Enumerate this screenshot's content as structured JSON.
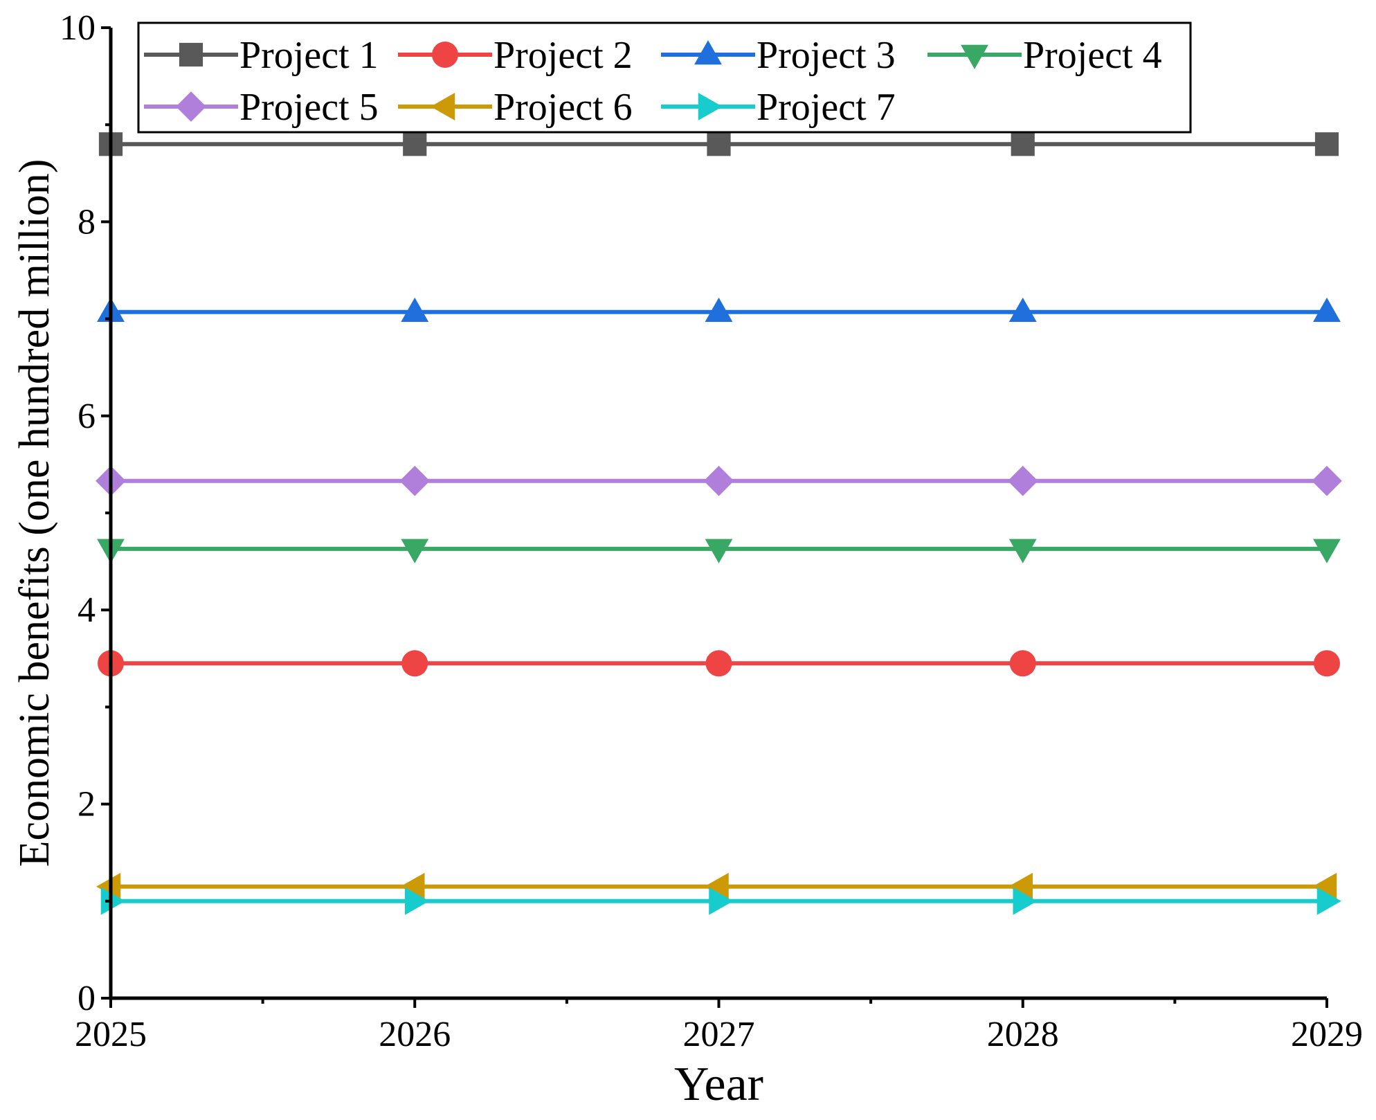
{
  "chart_data": {
    "type": "line",
    "xlabel": "Year",
    "ylabel": "Economic benefits (one hundred million)",
    "categories": [
      "2025",
      "2026",
      "2027",
      "2028",
      "2029"
    ],
    "x": [
      2025,
      2026,
      2027,
      2028,
      2029
    ],
    "xlim": [
      2025,
      2029
    ],
    "ylim": [
      0,
      10
    ],
    "yticks": [
      0,
      2,
      4,
      6,
      8,
      10
    ],
    "y_tick_labels": [
      "0",
      "2",
      "4",
      "6",
      "8",
      "10"
    ],
    "grid": false,
    "legend": "top-left, inside plot area, two rows",
    "series": [
      {
        "name": "Project 1",
        "values": [
          8.8,
          8.8,
          8.8,
          8.8,
          8.8
        ],
        "color": "#595959",
        "marker": "square"
      },
      {
        "name": "Project 2",
        "values": [
          3.45,
          3.45,
          3.45,
          3.45,
          3.45
        ],
        "color": "#ee4444",
        "marker": "circle"
      },
      {
        "name": "Project 3",
        "values": [
          7.07,
          7.07,
          7.07,
          7.07,
          7.07
        ],
        "color": "#1f6fdc",
        "marker": "triangle-up"
      },
      {
        "name": "Project 4",
        "values": [
          4.63,
          4.63,
          4.63,
          4.63,
          4.63
        ],
        "color": "#3aa865",
        "marker": "triangle-down"
      },
      {
        "name": "Project 5",
        "values": [
          5.33,
          5.33,
          5.33,
          5.33,
          5.33
        ],
        "color": "#b07fdc",
        "marker": "diamond"
      },
      {
        "name": "Project 6",
        "values": [
          1.15,
          1.15,
          1.15,
          1.15,
          1.15
        ],
        "color": "#cc9a06",
        "marker": "triangle-left"
      },
      {
        "name": "Project 7",
        "values": [
          1.0,
          1.0,
          1.0,
          1.0,
          1.0
        ],
        "color": "#17cccc",
        "marker": "triangle-right"
      }
    ]
  }
}
